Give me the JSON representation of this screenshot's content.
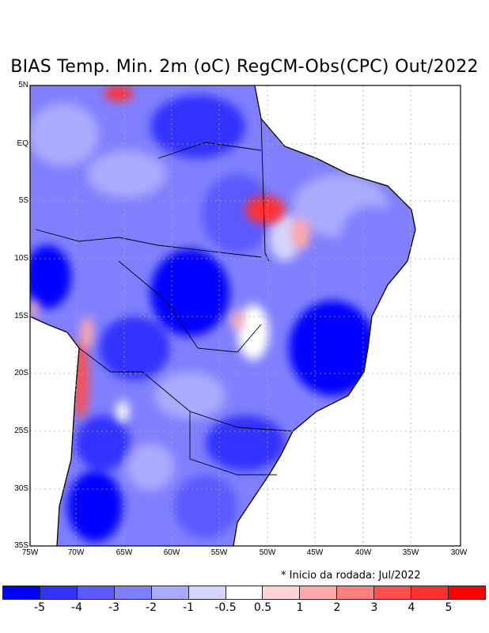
{
  "title": "BIAS Temp. Min. 2m (oC) RegCM-Obs(CPC) Out/2022",
  "lat_labels": [
    "5N",
    "EQ",
    "5S",
    "10S",
    "15S",
    "20S",
    "25S",
    "30S",
    "35S"
  ],
  "lon_labels": [
    "75W",
    "70W",
    "65W",
    "60W",
    "55W",
    "50W",
    "45W",
    "40W",
    "35W",
    "30W"
  ],
  "note": "* Inicio da rodada: Jul/2022",
  "colorbar": {
    "colors": [
      "#0000ff",
      "#3232ff",
      "#5a5aff",
      "#8080ff",
      "#aaaaff",
      "#d4d4ff",
      "#ffffff",
      "#ffd4d4",
      "#ffaaaa",
      "#ff8080",
      "#ff5050",
      "#ff3030",
      "#ff0000"
    ],
    "labels": [
      "-5",
      "-4",
      "-3",
      "-2",
      "-1",
      "-0.5",
      "0.5",
      "1",
      "2",
      "3",
      "4",
      "5"
    ]
  }
}
